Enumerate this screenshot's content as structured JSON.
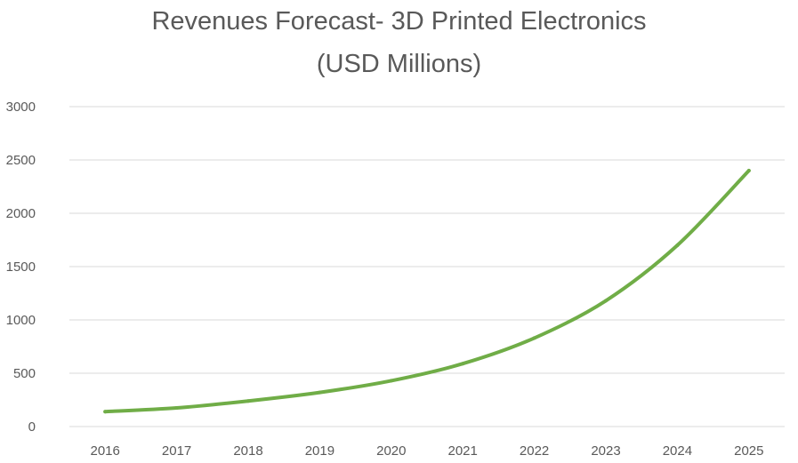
{
  "chart_data": {
    "type": "line",
    "title_lines": [
      "Revenues Forecast- 3D Printed Electronics",
      "(USD Millions)"
    ],
    "xlabel": "",
    "ylabel": "",
    "categories": [
      "2016",
      "2017",
      "2018",
      "2019",
      "2020",
      "2021",
      "2022",
      "2023",
      "2024",
      "2025"
    ],
    "series": [
      {
        "values": [
          140,
          175,
          240,
          320,
          430,
          590,
          830,
          1180,
          1700,
          2400
        ]
      }
    ],
    "ylim": [
      0,
      3000
    ],
    "yticks": [
      0,
      500,
      1000,
      1500,
      2000,
      2500,
      3000
    ],
    "grid": true,
    "legend": "none",
    "colors": {
      "line": "#70ad47",
      "grid": "#d9d9d9",
      "text": "#595959"
    }
  }
}
